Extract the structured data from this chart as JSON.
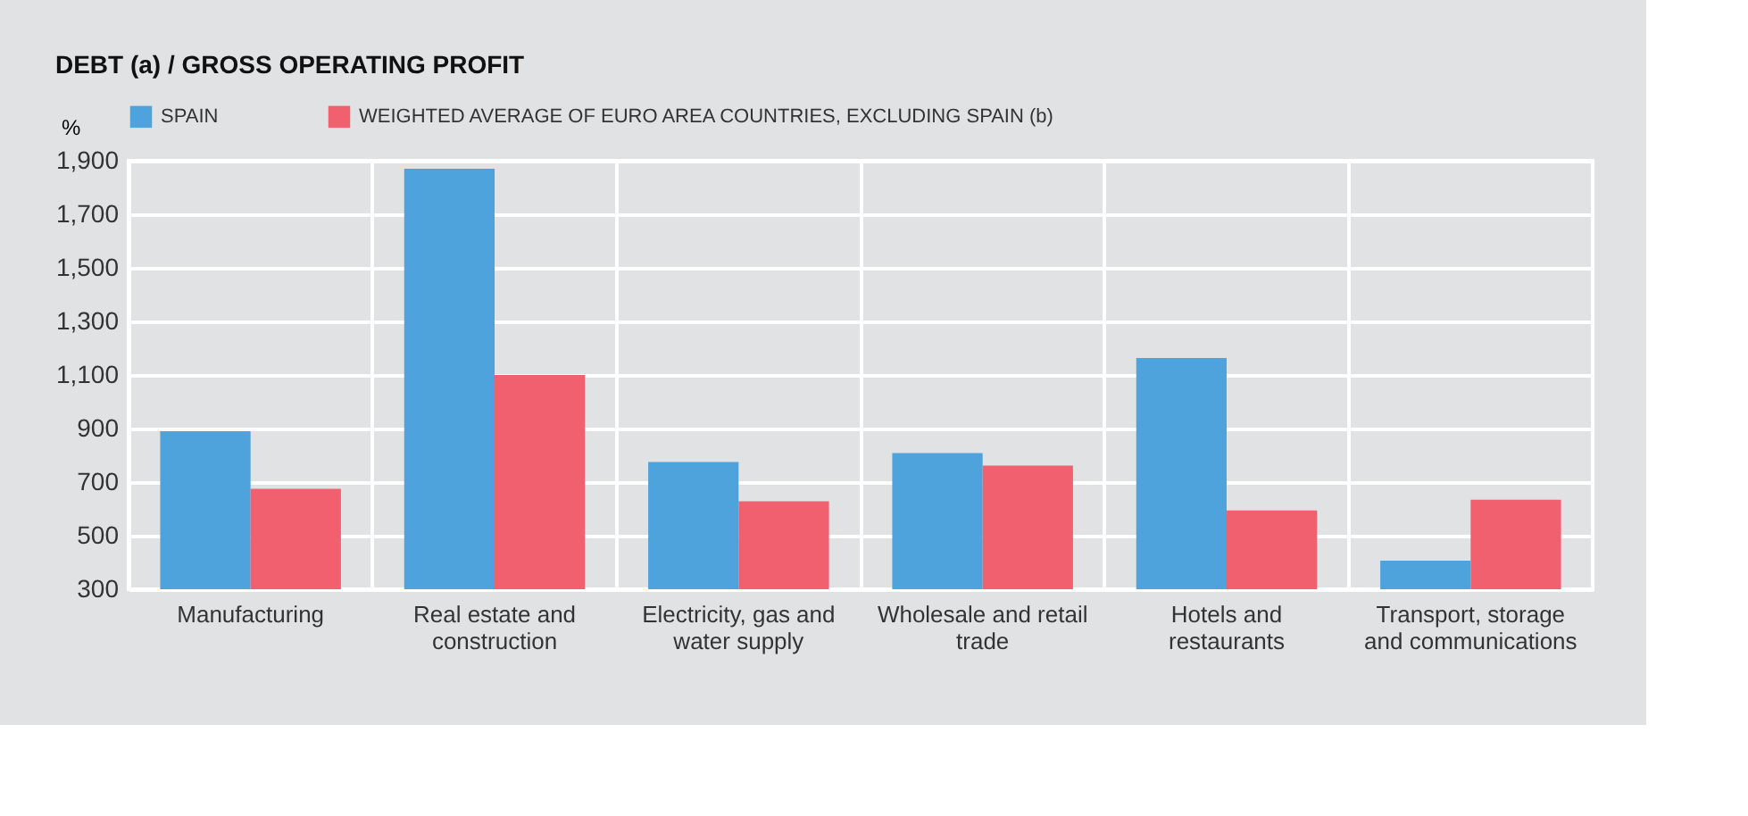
{
  "chart_data": {
    "type": "bar",
    "title": "DEBT (a) / GROSS OPERATING PROFIT",
    "ylabel": "%",
    "categories": [
      "Manufacturing",
      "Real estate and construction",
      "Electricity, gas and water supply",
      "Wholesale and retail trade",
      "Hotels and restaurants",
      "Transport, storage and communications"
    ],
    "series": [
      {
        "name": "SPAIN",
        "color": "#4fa3dc",
        "values": [
          890,
          1870,
          775,
          808,
          1163,
          407
        ]
      },
      {
        "name": "WEIGHTED AVERAGE OF EURO AREA COUNTRIES, EXCLUDING SPAIN (b)",
        "color": "#f0606e",
        "values": [
          675,
          1100,
          628,
          762,
          594,
          634
        ]
      }
    ],
    "ylim": [
      300,
      1900
    ],
    "yticks": [
      300,
      500,
      700,
      900,
      {
        "value": 1100,
        "label": "1,100"
      },
      {
        "value": 1300,
        "label": "1,300"
      },
      {
        "value": 1500,
        "label": "1,500"
      },
      {
        "value": 1700,
        "label": "1,700"
      },
      {
        "value": 1900,
        "label": "1,900"
      }
    ],
    "grid": true,
    "legend": "top left"
  }
}
